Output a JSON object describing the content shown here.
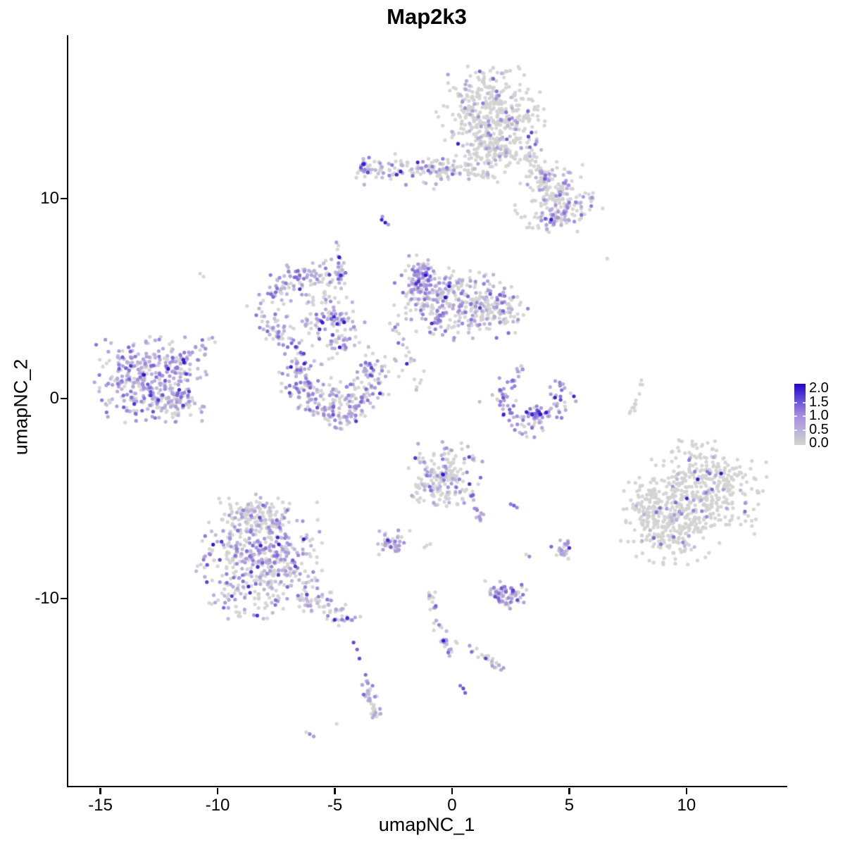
{
  "title": "Map2k3",
  "axes": {
    "x": {
      "label": "umapNC_1",
      "tick_labels": [
        "-15",
        "-10",
        "-5",
        "0",
        "5",
        "10"
      ],
      "tick_values": [
        -15,
        -10,
        -5,
        0,
        5,
        10
      ],
      "range": [
        -16.43,
        14.3
      ]
    },
    "y": {
      "label": "umapNC_2",
      "tick_labels": [
        "-10",
        "0",
        "10"
      ],
      "tick_values": [
        -10,
        0,
        10
      ],
      "range": [
        -19.44,
        18.17
      ]
    }
  },
  "legend": {
    "tick_labels": [
      "2.0",
      "1.5",
      "1.0",
      "0.5",
      "0.0"
    ],
    "tick_values": [
      2.0,
      1.5,
      1.0,
      0.5,
      0.0
    ],
    "bar_value_range": [
      -0.05,
      2.18
    ],
    "notch_values": [
      0.5,
      1.0,
      1.5
    ],
    "color_low": "#d3d3d3",
    "color_mid": "#a08cde",
    "color_high": "#2105d0"
  },
  "chart_data": {
    "type": "scatter",
    "title": "Map2k3",
    "xlabel": "umapNC_1",
    "ylabel": "umapNC_2",
    "xlim": [
      -16.43,
      14.3
    ],
    "ylim": [
      -19.44,
      18.17
    ],
    "grid": false,
    "legend_position": "right",
    "value_range": [
      0,
      2
    ],
    "color_scale": [
      [
        0,
        "#d3d3d3"
      ],
      [
        0.5,
        "#a08cde"
      ],
      [
        1,
        "#2105d0"
      ]
    ],
    "seed": 42,
    "clusters": [
      {
        "name": "top-main",
        "shape": "blob",
        "cx": 1.59,
        "cy": 14.4,
        "rx": 2.1,
        "ry": 2.0,
        "n": 380,
        "expr": 0.12
      },
      {
        "name": "top-main-south",
        "shape": "blob",
        "cx": 1.89,
        "cy": 12.4,
        "rx": 1.6,
        "ry": 1.0,
        "n": 130,
        "expr": 0.15
      },
      {
        "name": "top-tail",
        "shape": "chain",
        "x1": 3.1,
        "y1": 12.3,
        "x2": 4.74,
        "y2": 9.7,
        "w": 0.5,
        "n": 80,
        "expr": 0.25
      },
      {
        "name": "top-right-shoulder",
        "shape": "blob",
        "cx": 4.5,
        "cy": 10.0,
        "rx": 1.7,
        "ry": 1.6,
        "n": 150,
        "expr": 0.3
      },
      {
        "name": "shoulder-pocket",
        "shape": "blob",
        "cx": 4.35,
        "cy": 9.0,
        "rx": 0.8,
        "ry": 0.65,
        "n": 40,
        "expr": 0.7
      },
      {
        "name": "band",
        "shape": "chain",
        "x1": -3.75,
        "y1": 11.55,
        "x2": 0.2,
        "y2": 11.4,
        "w": 0.55,
        "n": 140,
        "expr": 0.42
      },
      {
        "name": "band-left-tip",
        "shape": "blob",
        "cx": -3.6,
        "cy": 11.5,
        "rx": 0.35,
        "ry": 0.4,
        "n": 14,
        "expr": 0.75
      },
      {
        "name": "band-right-ext",
        "shape": "chain",
        "x1": 0.3,
        "y1": 11.4,
        "x2": 1.8,
        "y2": 11.1,
        "w": 0.4,
        "n": 30,
        "expr": 0.2
      },
      {
        "name": "left-cluster",
        "shape": "blob",
        "cx": -12.85,
        "cy": 0.95,
        "rx": 2.1,
        "ry": 1.95,
        "n": 360,
        "expr": 0.72
      },
      {
        "name": "left-cluster-edge",
        "shape": "blob",
        "cx": -11.9,
        "cy": -0.2,
        "rx": 0.95,
        "ry": 0.75,
        "n": 55,
        "expr": 0.6
      },
      {
        "name": "left-tail",
        "shape": "chain",
        "x1": -11.7,
        "y1": 1.9,
        "x2": -10.3,
        "y2": 3.0,
        "w": 0.25,
        "n": 22,
        "expr": 0.6
      },
      {
        "name": "hook-arc",
        "shape": "arc",
        "cx": -5.92,
        "cy": 4.35,
        "rx": 1.8,
        "ry": 2.0,
        "a0": 55,
        "a1": 255,
        "jitter": 0.42,
        "n": 160,
        "expr": 0.62
      },
      {
        "name": "hook-bottom",
        "shape": "chain",
        "x1": -6.3,
        "y1": 3.85,
        "x2": -4.4,
        "y2": 3.95,
        "w": 0.35,
        "n": 40,
        "expr": 0.55
      },
      {
        "name": "hook-inner",
        "shape": "blob",
        "cx": -5.6,
        "cy": 5.1,
        "rx": 1.0,
        "ry": 1.0,
        "n": 35,
        "expr": 0.25
      },
      {
        "name": "trail-up",
        "shape": "chain",
        "x1": -4.65,
        "y1": 5.9,
        "x2": -4.9,
        "y2": 7.7,
        "w": 0.22,
        "n": 20,
        "expr": 0.55
      },
      {
        "name": "mid-scatter",
        "shape": "blob",
        "cx": -4.85,
        "cy": 3.3,
        "rx": 1.2,
        "ry": 1.5,
        "n": 50,
        "expr": 0.45
      },
      {
        "name": "mid-chain",
        "shape": "chain",
        "x1": -5.25,
        "y1": 4.8,
        "x2": -4.85,
        "y2": 1.8,
        "w": 0.3,
        "n": 18,
        "expr": 0.45
      },
      {
        "name": "crescent-u",
        "shape": "arc",
        "cx": -4.92,
        "cy": 0.99,
        "rx": 1.6,
        "ry": 1.85,
        "a0": 150,
        "a1": 395,
        "jitter": 0.4,
        "n": 230,
        "expr": 0.68
      },
      {
        "name": "crescent-u-inner",
        "shape": "arc",
        "cx": -4.92,
        "cy": 0.99,
        "rx": 0.8,
        "ry": 1.0,
        "a0": 190,
        "a1": 350,
        "jitter": 0.35,
        "n": 50,
        "expr": 0.5
      },
      {
        "name": "central",
        "shape": "blob",
        "cx": -0.1,
        "cy": 4.8,
        "rx": 2.2,
        "ry": 1.65,
        "n": 280,
        "expr": 0.45
      },
      {
        "name": "central-pocket",
        "shape": "blob",
        "cx": -1.3,
        "cy": 6.1,
        "rx": 0.7,
        "ry": 0.95,
        "n": 85,
        "expr": 0.8
      },
      {
        "name": "central-right",
        "shape": "blob",
        "cx": 1.75,
        "cy": 4.3,
        "rx": 1.3,
        "ry": 1.15,
        "n": 120,
        "expr": 0.35
      },
      {
        "name": "central-chain",
        "shape": "chain",
        "x1": -2.6,
        "y1": 4.1,
        "x2": -1.4,
        "y2": 0.6,
        "w": 0.3,
        "n": 24,
        "expr": 0.5
      },
      {
        "name": "right-crescent",
        "shape": "arc",
        "cx": 3.33,
        "cy": 0.2,
        "rx": 1.25,
        "ry": 1.5,
        "a0": 150,
        "a1": 390,
        "jitter": 0.35,
        "n": 95,
        "expr": 0.78
      },
      {
        "name": "right-crescent-pocket",
        "shape": "blob",
        "cx": 3.6,
        "cy": -0.75,
        "rx": 0.45,
        "ry": 0.35,
        "n": 28,
        "expr": 0.9
      },
      {
        "name": "right-crescent-tail",
        "shape": "chain",
        "x1": 2.6,
        "y1": 0.6,
        "x2": 3.0,
        "y2": 1.7,
        "w": 0.25,
        "n": 14,
        "expr": 0.7
      },
      {
        "name": "gray-strip",
        "shape": "chain",
        "x1": 7.66,
        "y1": -0.75,
        "x2": 8.05,
        "y2": 0.75,
        "w": 0.13,
        "n": 11,
        "expr": 0.0
      },
      {
        "name": "right-big-a",
        "shape": "blob",
        "cx": 10.7,
        "cy": -4.4,
        "rx": 2.4,
        "ry": 2.2,
        "n": 390,
        "expr": 0.07
      },
      {
        "name": "right-big-b",
        "shape": "blob",
        "cx": 9.3,
        "cy": -6.3,
        "rx": 1.9,
        "ry": 1.8,
        "n": 250,
        "expr": 0.09
      },
      {
        "name": "right-big-west",
        "shape": "blob",
        "cx": 8.3,
        "cy": -5.0,
        "rx": 0.9,
        "ry": 1.2,
        "n": 50,
        "expr": 0.1
      },
      {
        "name": "center-mid",
        "shape": "blob",
        "cx": -0.35,
        "cy": -4.0,
        "rx": 1.45,
        "ry": 1.6,
        "n": 200,
        "expr": 0.32
      },
      {
        "name": "center-mid-tail",
        "shape": "chain",
        "x1": 0.8,
        "y1": -4.7,
        "x2": 1.25,
        "y2": -6.1,
        "w": 0.2,
        "n": 16,
        "expr": 0.8
      },
      {
        "name": "small-blob",
        "shape": "blob",
        "cx": -2.6,
        "cy": -7.2,
        "rx": 0.75,
        "ry": 0.6,
        "n": 45,
        "expr": 0.5
      },
      {
        "name": "bottomleft-main",
        "shape": "blob",
        "cx": -8.2,
        "cy": -8.1,
        "rx": 2.4,
        "ry": 2.6,
        "n": 500,
        "expr": 0.45
      },
      {
        "name": "bottomleft-top",
        "shape": "blob",
        "cx": -8.5,
        "cy": -5.9,
        "rx": 1.4,
        "ry": 1.0,
        "n": 110,
        "expr": 0.38
      },
      {
        "name": "bottomleft-tail",
        "shape": "chain",
        "x1": -6.4,
        "y1": -9.8,
        "x2": -4.2,
        "y2": -11.1,
        "w": 0.55,
        "n": 65,
        "expr": 0.45
      },
      {
        "name": "right-small",
        "shape": "blob",
        "cx": 4.75,
        "cy": -7.6,
        "rx": 0.45,
        "ry": 0.6,
        "n": 26,
        "expr": 0.65
      },
      {
        "name": "island",
        "shape": "blob",
        "cx": 2.3,
        "cy": -9.8,
        "rx": 0.85,
        "ry": 0.7,
        "n": 80,
        "expr": 0.55
      },
      {
        "name": "trail-vert",
        "shape": "chain",
        "x1": -0.9,
        "y1": -9.7,
        "x2": -0.15,
        "y2": -12.8,
        "w": 0.28,
        "n": 38,
        "expr": 0.5
      },
      {
        "name": "trail-diag",
        "shape": "chain",
        "x1": 0.1,
        "y1": -12.0,
        "x2": 2.3,
        "y2": -13.6,
        "w": 0.2,
        "n": 24,
        "expr": 0.35
      },
      {
        "name": "vert-blob",
        "shape": "chain",
        "x1": -3.66,
        "y1": -14.0,
        "x2": -3.3,
        "y2": -15.9,
        "w": 0.3,
        "n": 38,
        "expr": 0.6
      }
    ],
    "single_points": [
      [
        -10.75,
        6.25,
        0
      ],
      [
        -10.6,
        6.1,
        0
      ],
      [
        6.62,
        7.0,
        0
      ],
      [
        -3.0,
        8.94,
        0.95
      ],
      [
        -2.85,
        8.8,
        1.0
      ],
      [
        -2.72,
        8.7,
        0.45
      ],
      [
        -2.97,
        9.1,
        0.5
      ],
      [
        2.64,
        -5.35,
        0.7
      ],
      [
        2.5,
        -5.28,
        0.6
      ],
      [
        2.77,
        -5.45,
        0.55
      ],
      [
        3.3,
        -7.9,
        0.55
      ],
      [
        3.16,
        -7.8,
        0
      ],
      [
        -4.92,
        -16.27,
        0
      ],
      [
        -4.2,
        -12.2,
        0.8
      ],
      [
        -4.05,
        -12.55,
        0.7
      ],
      [
        -3.95,
        -13.0,
        0.8
      ],
      [
        0.48,
        -14.5,
        0.8
      ],
      [
        0.35,
        -14.36,
        0.65
      ],
      [
        0.56,
        -14.72,
        0.7
      ],
      [
        -6.07,
        -16.78,
        0.55
      ],
      [
        -5.9,
        -16.9,
        0.45
      ],
      [
        -6.22,
        -16.68,
        0
      ],
      [
        -1.08,
        -7.35,
        0
      ],
      [
        -0.93,
        -7.28,
        0
      ],
      [
        -1.18,
        -7.44,
        0
      ],
      [
        8.08,
        0.92,
        0
      ]
    ]
  }
}
